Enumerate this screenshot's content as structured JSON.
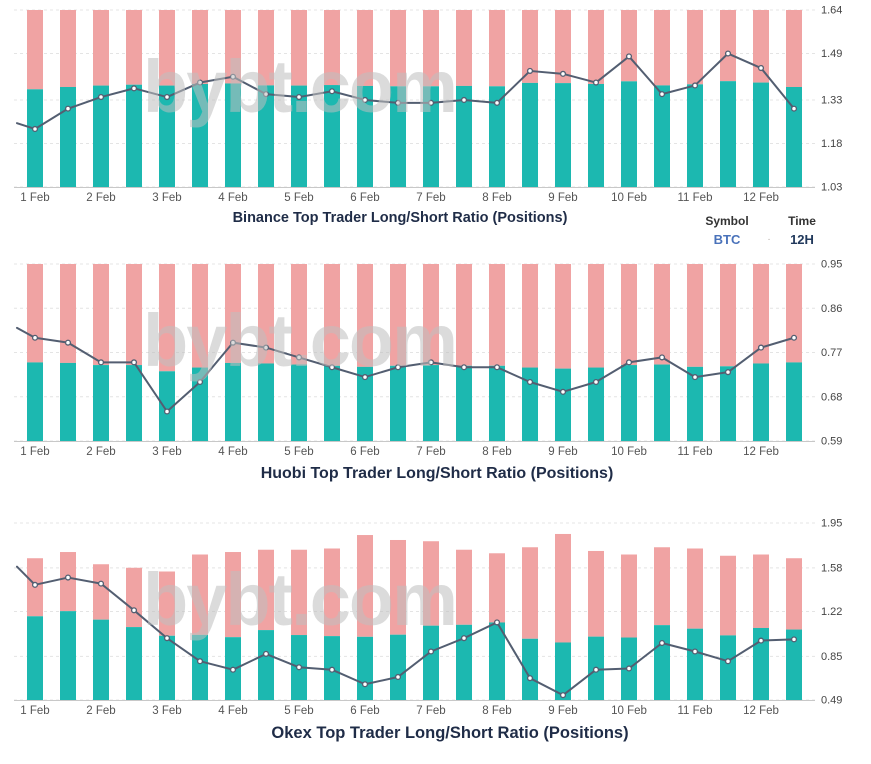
{
  "watermark": "bybt.com",
  "controls": {
    "symbol_label": "Symbol",
    "symbol_value": "BTC",
    "time_label": "Time",
    "time_value": "12H",
    "separator": "·"
  },
  "colors": {
    "long_bar": "#1cb8b0",
    "short_bar": "#f0a3a3",
    "line": "#535e71",
    "marker_fill": "#ffffff",
    "title": "#1f2c47",
    "x_tick_label": "#555555",
    "y_tick_label": "#444444",
    "grid": "#e4e4e4",
    "axis_line": "#c8c8c8",
    "symbol_value_color": "#4a72ba",
    "time_value_color": "#21395c"
  },
  "x_labels": [
    "1 Feb",
    "2 Feb",
    "3 Feb",
    "4 Feb",
    "5 Feb",
    "6 Feb",
    "7 Feb",
    "8 Feb",
    "9 Feb",
    "10 Feb",
    "11 Feb",
    "12 Feb"
  ],
  "chart_data": [
    {
      "type": "bar+line",
      "exchange": "Binance",
      "title": "Binance Top Trader Long/Short Ratio (Positions)",
      "interval_per_day": 2,
      "y_axis": {
        "side": "right",
        "min": 1.03,
        "max": 1.64,
        "ticks": [
          "1.64",
          "1.49",
          "1.33",
          "1.18",
          "1.03"
        ]
      },
      "grid": true,
      "bars": {
        "stacked_to_full_height": true,
        "total_pct_of_plot": [
          100,
          100,
          100,
          100,
          100,
          100,
          100,
          100,
          100,
          100,
          100,
          100,
          100,
          100,
          100,
          100,
          100,
          100,
          100,
          100,
          100,
          100,
          100,
          100
        ],
        "long_pct_of_plot": [
          55.2,
          56.5,
          57.3,
          57.8,
          57.3,
          58.2,
          58.5,
          57.4,
          57.3,
          57.6,
          57.1,
          56.9,
          56.9,
          57.1,
          56.9,
          58.8,
          58.7,
          58.2,
          59.7,
          57.4,
          58.0,
          59.8,
          59.0,
          56.5
        ]
      },
      "line": {
        "edge_value": 1.25,
        "values": [
          1.23,
          1.3,
          1.34,
          1.37,
          1.34,
          1.39,
          1.41,
          1.35,
          1.34,
          1.36,
          1.33,
          1.32,
          1.32,
          1.33,
          1.32,
          1.43,
          1.42,
          1.39,
          1.48,
          1.35,
          1.38,
          1.49,
          1.44,
          1.3
        ]
      }
    },
    {
      "type": "bar+line",
      "exchange": "Huobi",
      "title": "Huobi Top Trader Long/Short Ratio (Positions)",
      "interval_per_day": 2,
      "y_axis": {
        "side": "right",
        "min": 0.59,
        "max": 0.95,
        "ticks": [
          "0.95",
          "0.86",
          "0.77",
          "0.68",
          "0.59"
        ]
      },
      "grid": true,
      "bars": {
        "stacked_to_full_height": true,
        "total_pct_of_plot": [
          100,
          100,
          100,
          100,
          100,
          100,
          100,
          100,
          100,
          100,
          100,
          100,
          100,
          100,
          100,
          100,
          100,
          100,
          100,
          100,
          100,
          100,
          100,
          100
        ],
        "long_pct_of_plot": [
          44.4,
          44.1,
          42.9,
          42.9,
          39.4,
          41.5,
          44.1,
          43.8,
          43.2,
          42.5,
          41.9,
          42.5,
          42.9,
          42.5,
          42.5,
          41.5,
          40.9,
          41.5,
          42.9,
          43.2,
          41.9,
          42.2,
          43.8,
          44.4
        ]
      },
      "line": {
        "edge_value": 0.82,
        "values": [
          0.8,
          0.79,
          0.75,
          0.75,
          0.65,
          0.71,
          0.79,
          0.78,
          0.76,
          0.74,
          0.72,
          0.74,
          0.75,
          0.74,
          0.74,
          0.71,
          0.69,
          0.71,
          0.75,
          0.76,
          0.72,
          0.73,
          0.78,
          0.8
        ]
      }
    },
    {
      "type": "bar+line",
      "exchange": "Okex",
      "title": "Okex Top Trader Long/Short Ratio (Positions)",
      "interval_per_day": 2,
      "y_axis": {
        "side": "right",
        "min": 0.49,
        "max": 1.95,
        "ticks": [
          "1.95",
          "1.58",
          "1.22",
          "0.85",
          "0.49"
        ]
      },
      "grid": true,
      "bars": {
        "stacked_to_full_height": false,
        "total_pct_of_plot": [
          80.1,
          83.6,
          76.7,
          74.7,
          72.6,
          82.2,
          83.6,
          84.9,
          84.9,
          85.6,
          93.2,
          90.4,
          89.7,
          84.9,
          82.9,
          86.3,
          93.8,
          84.2,
          82.2,
          86.3,
          85.6,
          81.5,
          82.2,
          80.1
        ],
        "long_pct_of_plot": [
          47.3,
          50.2,
          45.4,
          41.2,
          36.3,
          36.8,
          35.5,
          39.5,
          36.7,
          36.1,
          35.7,
          36.9,
          42.0,
          42.5,
          43.8,
          34.6,
          32.5,
          35.8,
          35.3,
          42.3,
          40.3,
          36.5,
          40.7,
          39.8
        ]
      },
      "line": {
        "edge_value": 1.59,
        "values": [
          1.44,
          1.5,
          1.45,
          1.23,
          1.0,
          0.81,
          0.74,
          0.87,
          0.76,
          0.74,
          0.62,
          0.68,
          0.89,
          1.0,
          1.13,
          0.67,
          0.53,
          0.74,
          0.75,
          0.96,
          0.89,
          0.81,
          0.98,
          0.99
        ]
      }
    }
  ]
}
